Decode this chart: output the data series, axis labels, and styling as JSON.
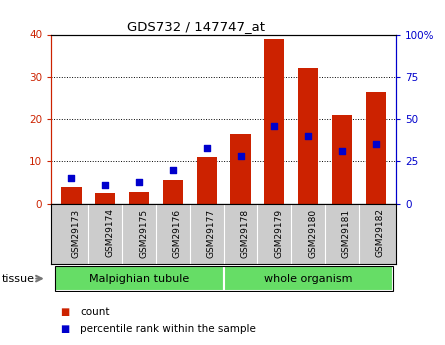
{
  "title": "GDS732 / 147747_at",
  "categories": [
    "GSM29173",
    "GSM29174",
    "GSM29175",
    "GSM29176",
    "GSM29177",
    "GSM29178",
    "GSM29179",
    "GSM29180",
    "GSM29181",
    "GSM29182"
  ],
  "count_values": [
    4.0,
    2.5,
    2.8,
    5.5,
    11.0,
    16.5,
    39.0,
    32.0,
    21.0,
    26.5
  ],
  "percentile_values": [
    15,
    11,
    13,
    20,
    33,
    28,
    46,
    40,
    31,
    35
  ],
  "tissue_groups": [
    {
      "label": "Malpighian tubule",
      "n_bars": 5
    },
    {
      "label": "whole organism",
      "n_bars": 5
    }
  ],
  "bar_color": "#cc2200",
  "dot_color": "#0000cc",
  "left_ylim": [
    0,
    40
  ],
  "right_ylim": [
    0,
    100
  ],
  "left_yticks": [
    0,
    10,
    20,
    30,
    40
  ],
  "right_yticks": [
    0,
    25,
    50,
    75,
    100
  ],
  "right_yticklabels": [
    "0",
    "25",
    "50",
    "75",
    "100%"
  ],
  "bg_plot": "#ffffff",
  "bg_xlabel": "#cccccc",
  "bg_tissue": "#66dd66",
  "left_axis_color": "#cc2200",
  "right_axis_color": "#0000cc",
  "legend_count_label": "count",
  "legend_pct_label": "percentile rank within the sample"
}
